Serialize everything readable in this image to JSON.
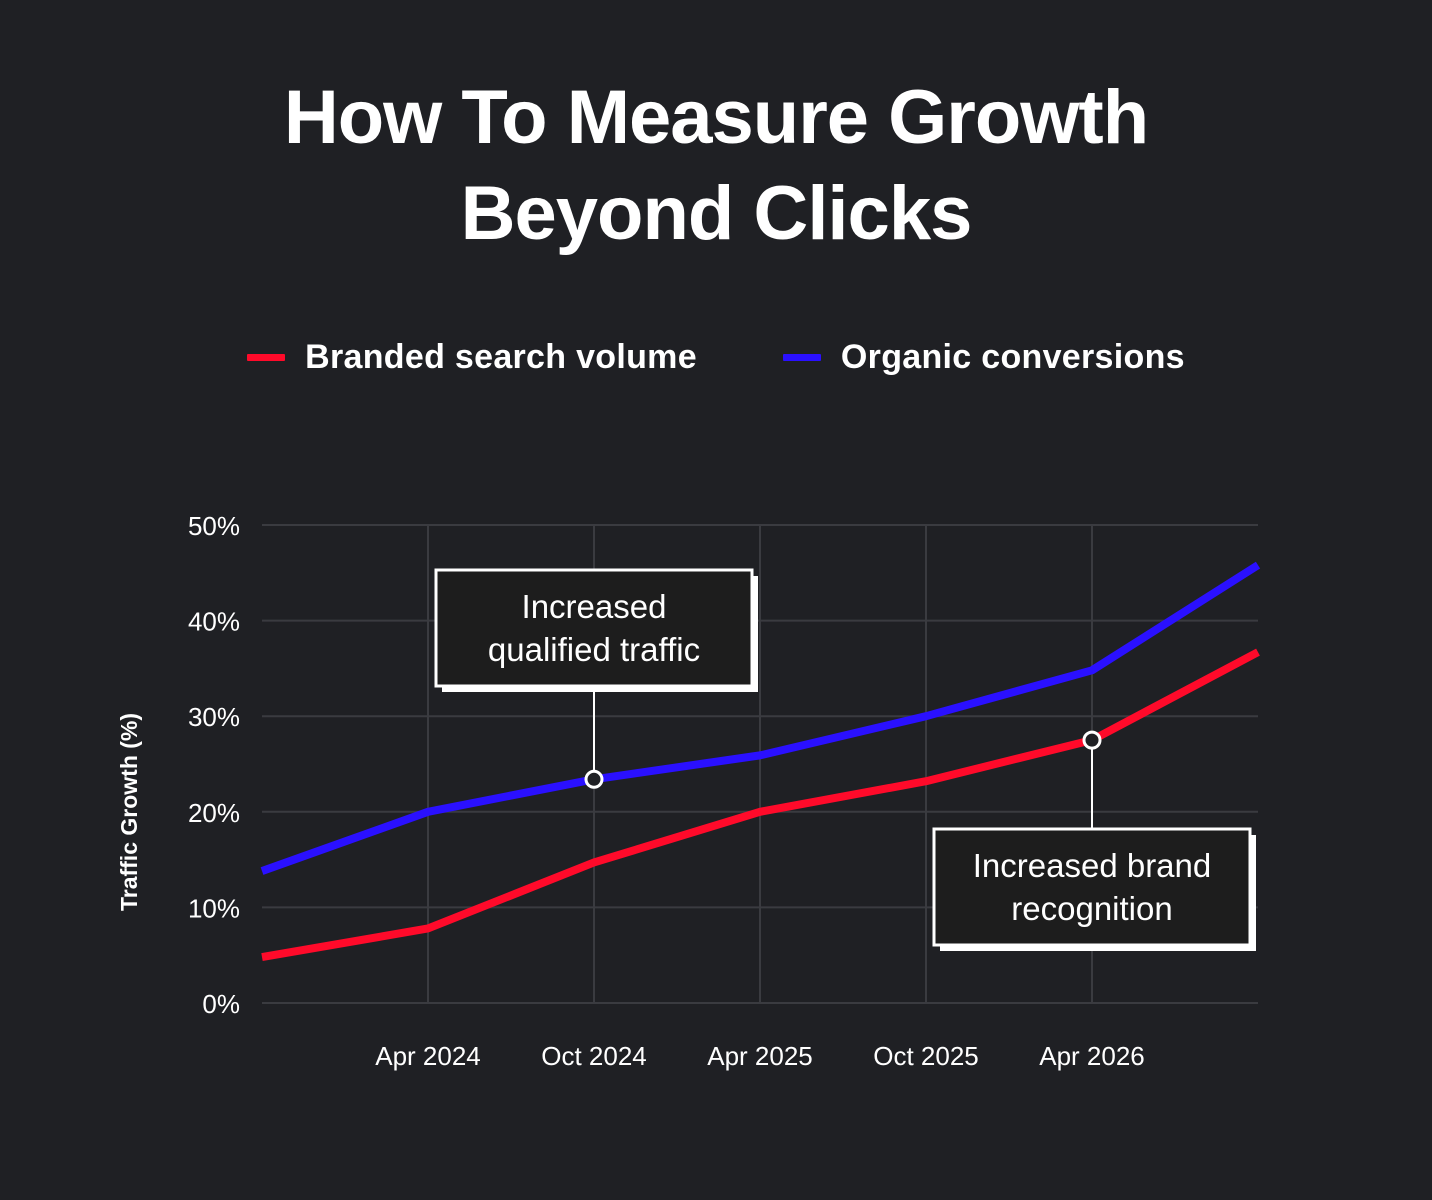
{
  "page": {
    "title_line1": "How To Measure Growth",
    "title_line2": "Beyond Clicks"
  },
  "colors": {
    "background": "#1f2024",
    "branded": "#ff0a2a",
    "organic": "#2a10ff",
    "grid": "#3a3b40",
    "text": "#ffffff"
  },
  "legend": [
    {
      "label": "Branded search volume",
      "color": "#ff0a2a"
    },
    {
      "label": "Organic conversions",
      "color": "#2a10ff"
    }
  ],
  "chart_data": {
    "type": "line",
    "title": "",
    "xlabel": "",
    "ylabel": "Traffic Growth (%)",
    "x_tick_labels": [
      "",
      "Apr 2024",
      "Oct 2024",
      "Apr 2025",
      "Oct 2025",
      "Apr 2026",
      ""
    ],
    "y_ticks": [
      "0%",
      "10%",
      "20%",
      "30%",
      "40%",
      "50%"
    ],
    "ylim": [
      0,
      50
    ],
    "grid": true,
    "legend_position": "top",
    "series": [
      {
        "name": "Branded search volume",
        "color": "#ff0a2a",
        "values": [
          4.8,
          7.8,
          14.7,
          20.0,
          23.2,
          27.5,
          36.7
        ]
      },
      {
        "name": "Organic conversions",
        "color": "#2a10ff",
        "values": [
          13.8,
          20.0,
          23.4,
          25.9,
          30.0,
          34.8,
          45.8
        ]
      }
    ],
    "annotations": [
      {
        "lines": [
          "Increased",
          "qualified traffic"
        ],
        "series": 1,
        "index": 2,
        "placement": "above"
      },
      {
        "lines": [
          "Increased brand",
          "recognition"
        ],
        "series": 0,
        "index": 5,
        "placement": "below"
      }
    ]
  }
}
